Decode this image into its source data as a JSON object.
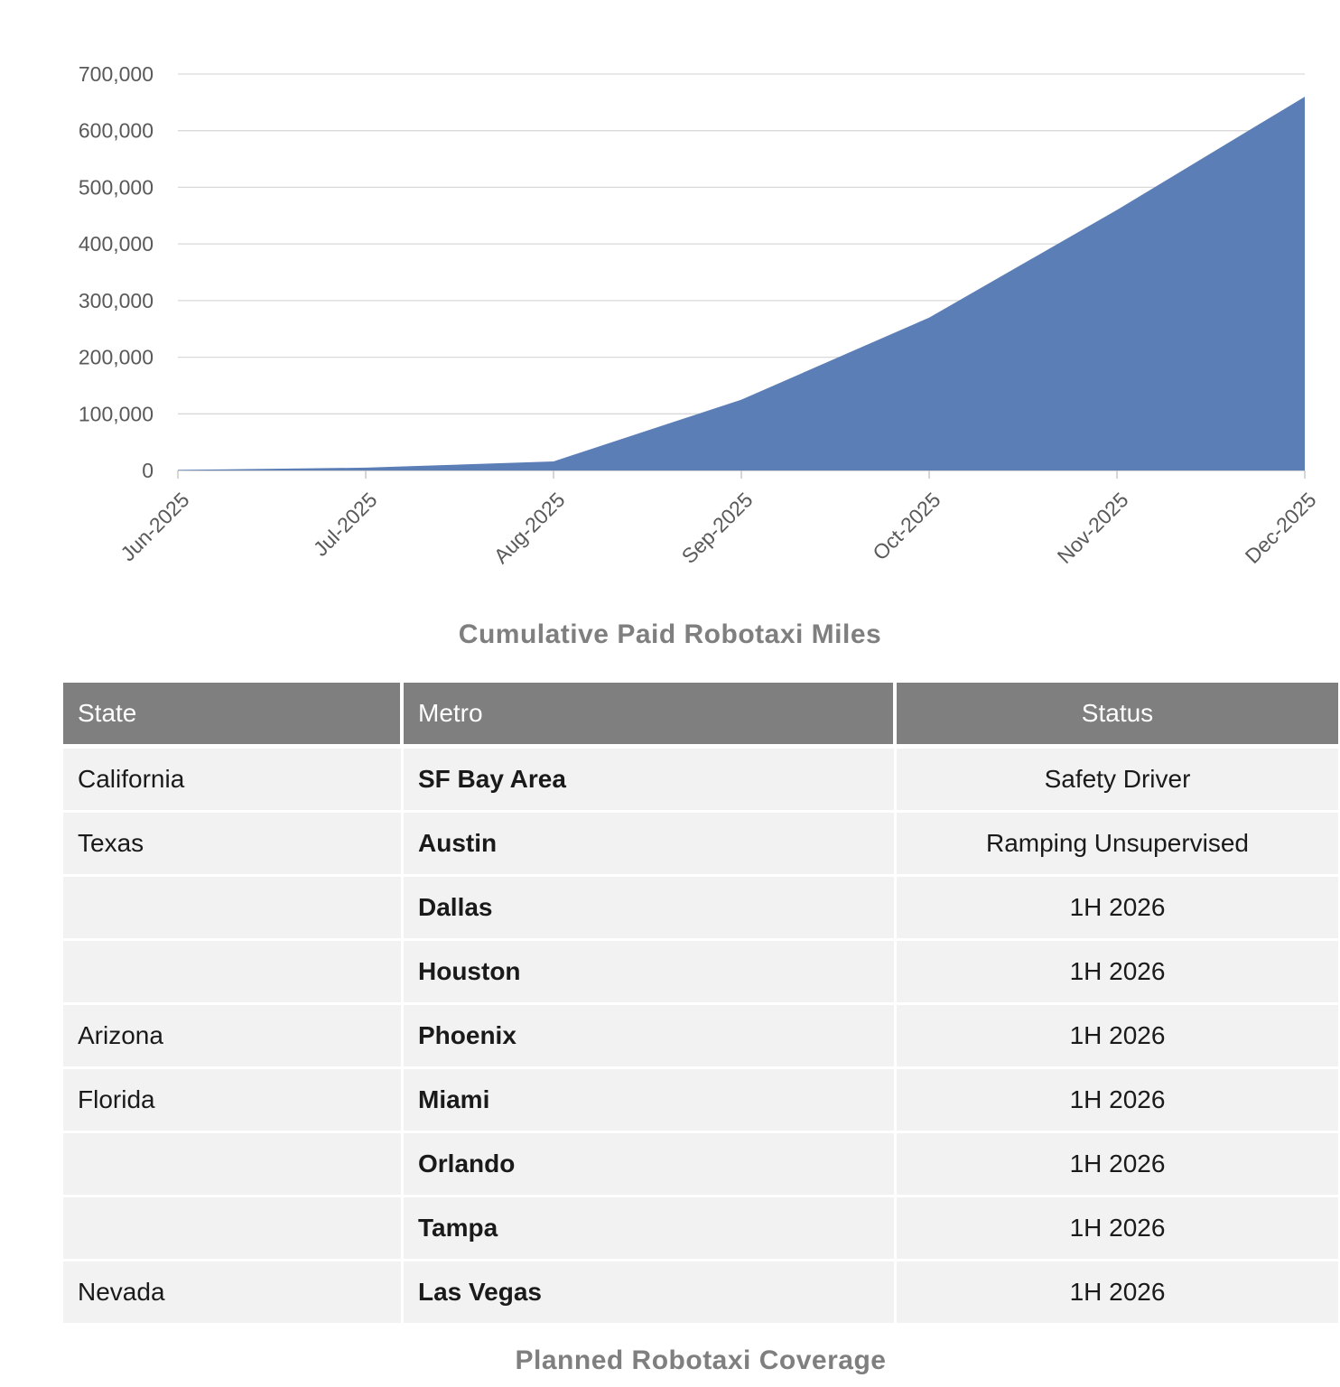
{
  "chart_data": {
    "type": "area",
    "title": "Cumulative Paid Robotaxi Miles",
    "categories": [
      "Jun-2025",
      "Jul-2025",
      "Aug-2025",
      "Sep-2025",
      "Oct-2025",
      "Nov-2025",
      "Dec-2025"
    ],
    "values": [
      1000,
      5000,
      16000,
      125000,
      270000,
      460000,
      660000
    ],
    "xlabel": "",
    "ylabel": "",
    "ylim": [
      0,
      700000
    ],
    "ytick_interval": 100000,
    "ytick_labels": [
      "0",
      "100,000",
      "200,000",
      "300,000",
      "400,000",
      "500,000",
      "600,000",
      "700,000"
    ],
    "grid": true,
    "legend": "none",
    "area_color": "#5b7eb7",
    "interpolation": "linear"
  },
  "table": {
    "caption": "Planned Robotaxi Coverage",
    "columns": [
      "State",
      "Metro",
      "Status"
    ],
    "rows": [
      {
        "state": "California",
        "metro": "SF Bay Area",
        "status": "Safety Driver"
      },
      {
        "state": "Texas",
        "metro": "Austin",
        "status": "Ramping Unsupervised"
      },
      {
        "state": "",
        "metro": "Dallas",
        "status": "1H 2026"
      },
      {
        "state": "",
        "metro": "Houston",
        "status": "1H 2026"
      },
      {
        "state": "Arizona",
        "metro": "Phoenix",
        "status": "1H 2026"
      },
      {
        "state": "Florida",
        "metro": "Miami",
        "status": "1H 2026"
      },
      {
        "state": "",
        "metro": "Orlando",
        "status": "1H 2026"
      },
      {
        "state": "",
        "metro": "Tampa",
        "status": "1H 2026"
      },
      {
        "state": "Nevada",
        "metro": "Las Vegas",
        "status": "1H 2026"
      }
    ]
  },
  "colors": {
    "area_fill": "#5b7eb7",
    "table_header_bg": "#7f7f7f",
    "table_row_bg": "#f2f2f2",
    "axis_text": "#595959",
    "gridline": "#d9d9d9",
    "axis_line": "#bfbfbf",
    "title_text": "#7f7f7f"
  }
}
